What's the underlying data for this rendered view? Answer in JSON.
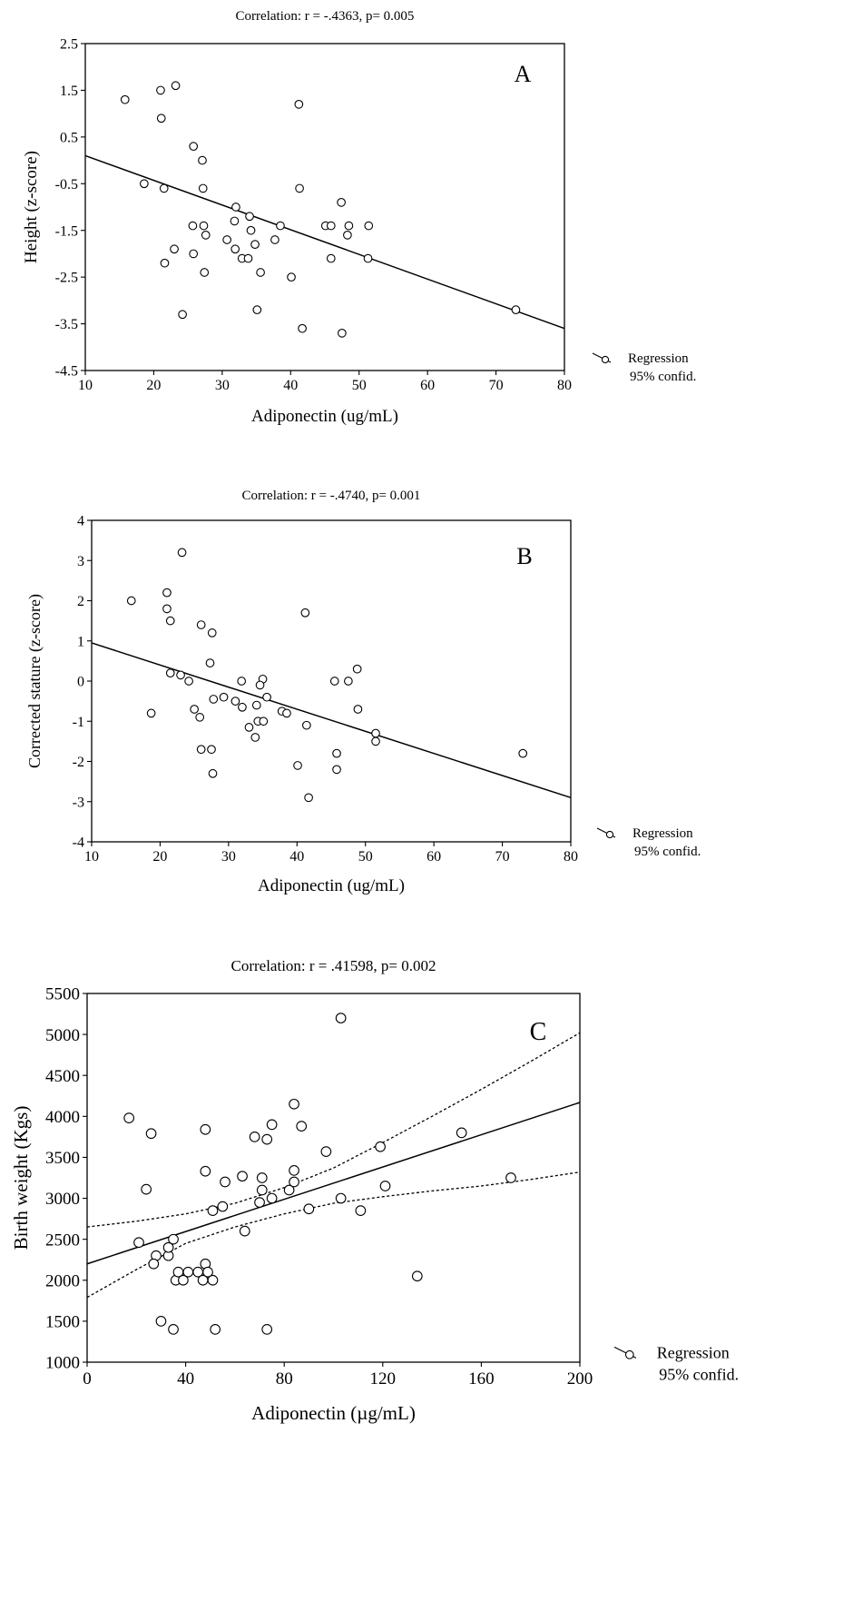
{
  "chart_data": [
    {
      "type": "scatter",
      "panel_label": "A",
      "title": "Correlation: r = -.4363, p= 0.005",
      "xlabel": "Adiponectin (ug/mL)",
      "ylabel": "Height (z-score)",
      "xlim": [
        10,
        80
      ],
      "ylim": [
        -4.5,
        2.5
      ],
      "x_ticks": [
        "10",
        "20",
        "30",
        "40",
        "50",
        "60",
        "70",
        "80"
      ],
      "y_ticks": [
        "2.5",
        "1.5",
        "0.5",
        "-0.5",
        "-1.5",
        "-2.5",
        "-3.5",
        "-4.5"
      ],
      "legend": {
        "position": "outside-bottom-right",
        "line1": "Regression",
        "line2": "95% confid."
      },
      "regression": {
        "x": [
          10,
          80
        ],
        "y": [
          0.1,
          -3.6
        ]
      },
      "points": [
        [
          15.8,
          1.3
        ],
        [
          21.0,
          1.5
        ],
        [
          23.2,
          1.6
        ],
        [
          21.1,
          0.9
        ],
        [
          41.2,
          1.2
        ],
        [
          25.8,
          0.3
        ],
        [
          27.1,
          0.0
        ],
        [
          18.6,
          -0.5
        ],
        [
          21.5,
          -0.6
        ],
        [
          27.2,
          -0.6
        ],
        [
          41.3,
          -0.6
        ],
        [
          47.4,
          -0.9
        ],
        [
          32.0,
          -1.0
        ],
        [
          34.0,
          -1.2
        ],
        [
          31.8,
          -1.3
        ],
        [
          25.7,
          -1.4
        ],
        [
          27.3,
          -1.4
        ],
        [
          38.5,
          -1.4
        ],
        [
          45.1,
          -1.4
        ],
        [
          45.9,
          -1.4
        ],
        [
          48.5,
          -1.4
        ],
        [
          51.4,
          -1.4
        ],
        [
          34.2,
          -1.5
        ],
        [
          27.6,
          -1.6
        ],
        [
          48.3,
          -1.6
        ],
        [
          30.7,
          -1.7
        ],
        [
          37.7,
          -1.7
        ],
        [
          34.8,
          -1.8
        ],
        [
          23.0,
          -1.9
        ],
        [
          31.9,
          -1.9
        ],
        [
          25.8,
          -2.0
        ],
        [
          32.9,
          -2.1
        ],
        [
          33.8,
          -2.1
        ],
        [
          45.9,
          -2.1
        ],
        [
          51.3,
          -2.1
        ],
        [
          21.6,
          -2.2
        ],
        [
          27.4,
          -2.4
        ],
        [
          35.6,
          -2.4
        ],
        [
          40.1,
          -2.5
        ],
        [
          35.1,
          -3.2
        ],
        [
          72.9,
          -3.2
        ],
        [
          24.2,
          -3.3
        ],
        [
          41.7,
          -3.6
        ],
        [
          47.5,
          -3.7
        ]
      ]
    },
    {
      "type": "scatter",
      "panel_label": "B",
      "title": "Correlation: r = -.4740, p= 0.001",
      "xlabel": "Adiponectin (ug/mL)",
      "ylabel": "Corrected stature (z-score)",
      "xlim": [
        10,
        80
      ],
      "ylim": [
        -4,
        4
      ],
      "x_ticks": [
        "10",
        "20",
        "30",
        "40",
        "50",
        "60",
        "70",
        "80"
      ],
      "y_ticks": [
        "4",
        "3",
        "2",
        "1",
        "0",
        "-1",
        "-2",
        "-3",
        "-4"
      ],
      "legend": {
        "position": "outside-bottom-right",
        "line1": "Regression",
        "line2": "95% confid."
      },
      "regression": {
        "x": [
          10,
          80
        ],
        "y": [
          0.95,
          -2.9
        ]
      },
      "points": [
        [
          23.2,
          3.2
        ],
        [
          21.0,
          2.2
        ],
        [
          15.8,
          2.0
        ],
        [
          21.0,
          1.8
        ],
        [
          41.2,
          1.7
        ],
        [
          21.5,
          1.5
        ],
        [
          26.0,
          1.4
        ],
        [
          27.6,
          1.2
        ],
        [
          27.3,
          0.45
        ],
        [
          48.8,
          0.3
        ],
        [
          21.5,
          0.2
        ],
        [
          23.0,
          0.15
        ],
        [
          24.2,
          0.0
        ],
        [
          31.9,
          0.0
        ],
        [
          35.0,
          0.05
        ],
        [
          45.5,
          0.0
        ],
        [
          47.5,
          0.0
        ],
        [
          34.6,
          -0.1
        ],
        [
          35.6,
          -0.4
        ],
        [
          29.3,
          -0.4
        ],
        [
          27.8,
          -0.45
        ],
        [
          31.0,
          -0.5
        ],
        [
          34.1,
          -0.6
        ],
        [
          32.0,
          -0.65
        ],
        [
          25.0,
          -0.7
        ],
        [
          48.9,
          -0.7
        ],
        [
          37.8,
          -0.75
        ],
        [
          38.5,
          -0.8
        ],
        [
          18.7,
          -0.8
        ],
        [
          25.8,
          -0.9
        ],
        [
          34.3,
          -1.0
        ],
        [
          35.1,
          -1.0
        ],
        [
          33.0,
          -1.15
        ],
        [
          41.4,
          -1.1
        ],
        [
          51.5,
          -1.3
        ],
        [
          33.9,
          -1.4
        ],
        [
          51.5,
          -1.5
        ],
        [
          26.0,
          -1.7
        ],
        [
          27.5,
          -1.7
        ],
        [
          73.0,
          -1.8
        ],
        [
          45.8,
          -1.8
        ],
        [
          40.1,
          -2.1
        ],
        [
          45.8,
          -2.2
        ],
        [
          27.7,
          -2.3
        ],
        [
          41.7,
          -2.9
        ]
      ]
    },
    {
      "type": "scatter",
      "panel_label": "C",
      "title": "Correlation: r = .41598, p= 0.002",
      "xlabel": "Adiponectin (µg/mL)",
      "ylabel": "Birth weight (Kgs)",
      "xlim": [
        0,
        200
      ],
      "ylim": [
        1000,
        5500
      ],
      "x_ticks": [
        "0",
        "40",
        "80",
        "120",
        "160",
        "200"
      ],
      "y_ticks": [
        "5500",
        "5000",
        "4500",
        "4000",
        "3500",
        "3000",
        "2500",
        "2000",
        "1500",
        "1000"
      ],
      "legend": {
        "position": "outside-bottom-right",
        "line1": "Regression",
        "line2": "95% confid."
      },
      "regression": {
        "x": [
          0,
          200
        ],
        "y": [
          2200,
          4170
        ]
      },
      "confidence_upper": {
        "x": [
          0,
          20,
          40,
          60,
          80,
          100,
          120,
          140,
          160,
          180,
          200
        ],
        "y": [
          2650,
          2720,
          2810,
          2940,
          3130,
          3370,
          3680,
          4000,
          4330,
          4670,
          5020
        ]
      },
      "confidence_lower": {
        "x": [
          0,
          20,
          40,
          60,
          80,
          100,
          120,
          140,
          160,
          180,
          200
        ],
        "y": [
          1790,
          2130,
          2450,
          2650,
          2810,
          2940,
          3020,
          3090,
          3150,
          3230,
          3320
        ]
      },
      "points": [
        [
          103,
          5200
        ],
        [
          17,
          3980
        ],
        [
          84,
          4150
        ],
        [
          26,
          3790
        ],
        [
          48,
          3840
        ],
        [
          75,
          3900
        ],
        [
          87,
          3880
        ],
        [
          68,
          3750
        ],
        [
          73,
          3720
        ],
        [
          97,
          3570
        ],
        [
          119,
          3630
        ],
        [
          152,
          3800
        ],
        [
          172,
          3250
        ],
        [
          48,
          3330
        ],
        [
          63,
          3270
        ],
        [
          71,
          3250
        ],
        [
          84,
          3340
        ],
        [
          24,
          3110
        ],
        [
          56,
          3200
        ],
        [
          71,
          3100
        ],
        [
          82,
          3100
        ],
        [
          84,
          3200
        ],
        [
          121,
          3150
        ],
        [
          70,
          2950
        ],
        [
          75,
          3000
        ],
        [
          103,
          3000
        ],
        [
          51,
          2850
        ],
        [
          55,
          2900
        ],
        [
          90,
          2870
        ],
        [
          111,
          2850
        ],
        [
          64,
          2600
        ],
        [
          21,
          2460
        ],
        [
          35,
          2500
        ],
        [
          28,
          2300
        ],
        [
          27,
          2200
        ],
        [
          33,
          2300
        ],
        [
          33,
          2400
        ],
        [
          36,
          2000
        ],
        [
          37,
          2100
        ],
        [
          41,
          2100
        ],
        [
          39,
          2000
        ],
        [
          45,
          2100
        ],
        [
          47,
          2000
        ],
        [
          48,
          2200
        ],
        [
          49,
          2100
        ],
        [
          51,
          2000
        ],
        [
          134,
          2050
        ],
        [
          30,
          1500
        ],
        [
          35,
          1400
        ],
        [
          52,
          1400
        ],
        [
          73,
          1400
        ]
      ]
    }
  ]
}
